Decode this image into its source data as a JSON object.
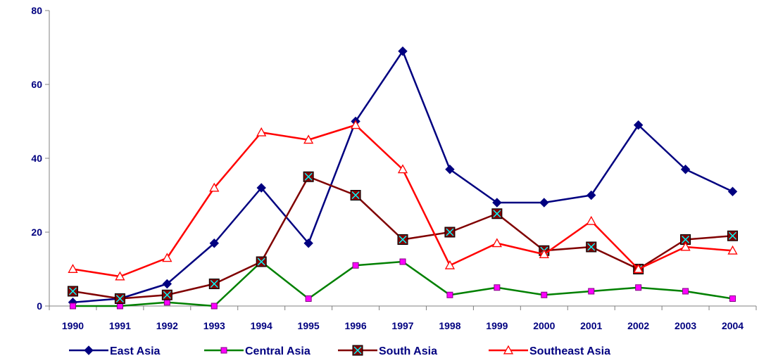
{
  "chart_data": {
    "type": "line",
    "title": "",
    "xlabel": "",
    "ylabel": "",
    "ylim": [
      0,
      80
    ],
    "yticks": [
      0,
      20,
      40,
      60,
      80
    ],
    "grid": false,
    "legend_position": "bottom",
    "categories": [
      "1990",
      "1991",
      "1992",
      "1993",
      "1994",
      "1995",
      "1996",
      "1997",
      "1998",
      "1999",
      "2000",
      "2001",
      "2002",
      "2003",
      "2004"
    ],
    "series": [
      {
        "name": "East Asia",
        "color": "#000080",
        "marker": "diamond",
        "values": [
          1,
          2,
          6,
          17,
          32,
          17,
          50,
          69,
          37,
          28,
          28,
          30,
          49,
          37,
          31
        ]
      },
      {
        "name": "Central Asia",
        "color": "#008000",
        "marker": "square-magenta",
        "values": [
          0,
          0,
          1,
          0,
          12,
          2,
          11,
          12,
          3,
          5,
          3,
          4,
          5,
          4,
          2
        ]
      },
      {
        "name": "South Asia",
        "color": "#800000",
        "marker": "square-x",
        "values": [
          4,
          2,
          3,
          6,
          12,
          35,
          30,
          18,
          20,
          25,
          15,
          16,
          10,
          18,
          19
        ]
      },
      {
        "name": "Southeast Asia",
        "color": "#ff0000",
        "marker": "triangle",
        "values": [
          10,
          8,
          13,
          32,
          47,
          45,
          49,
          37,
          11,
          17,
          14,
          23,
          10,
          16,
          15
        ]
      }
    ]
  }
}
